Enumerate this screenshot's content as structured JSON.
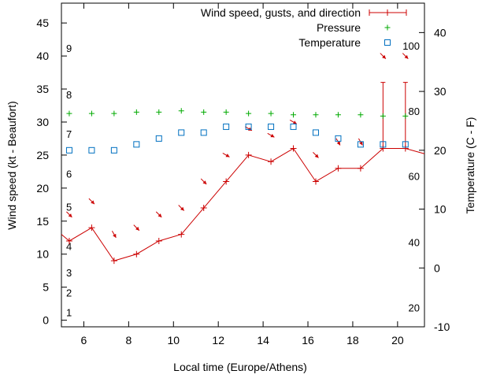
{
  "chart_data": {
    "type": "line",
    "xlabel": "Local time (Europe/Athens)",
    "ylabel": "Wind speed (kt - Beaufort)",
    "y2label": "Temperature (C - F)",
    "xlim": [
      5,
      21.2
    ],
    "ylim": [
      -1,
      48
    ],
    "y2lim": [
      -10,
      45
    ],
    "x_ticks": [
      6,
      8,
      10,
      12,
      14,
      16,
      18,
      20
    ],
    "y_ticks": [
      0,
      5,
      10,
      15,
      20,
      25,
      30,
      35,
      40,
      45
    ],
    "y2_ticks": [
      -10,
      0,
      10,
      20,
      30,
      40
    ],
    "beaufort_scale": [
      {
        "label": "1",
        "y": 1.2
      },
      {
        "label": "2",
        "y": 4.2
      },
      {
        "label": "3",
        "y": 7.2
      },
      {
        "label": "4",
        "y": 11.2
      },
      {
        "label": "5",
        "y": 17.2
      },
      {
        "label": "6",
        "y": 22.2
      },
      {
        "label": "7",
        "y": 28.2
      },
      {
        "label": "8",
        "y": 34.2
      },
      {
        "label": "9",
        "y": 41.2
      }
    ],
    "fahrenheit_scale": [
      {
        "label": "20",
        "y2": -6.7
      },
      {
        "label": "40",
        "y2": 4.4
      },
      {
        "label": "60",
        "y2": 15.6
      },
      {
        "label": "80",
        "y2": 26.7
      },
      {
        "label": "100",
        "y2": 37.8
      }
    ],
    "legend": {
      "position": "top-right",
      "entries": [
        {
          "label": "Wind speed, gusts, and direction",
          "series": "wind",
          "color": "#cc0000"
        },
        {
          "label": "Pressure",
          "series": "pressure",
          "color": "#00aa00"
        },
        {
          "label": "Temperature",
          "series": "temperature",
          "color": "#0070c0"
        }
      ]
    },
    "series": [
      {
        "name": "Wind speed, gusts, and direction",
        "key": "wind",
        "color": "#cc0000",
        "x": [
          5.35,
          6.35,
          7.35,
          8.35,
          9.35,
          10.35,
          11.35,
          12.35,
          13.35,
          14.35,
          15.35,
          16.35,
          17.35,
          18.35,
          19.35,
          20.35
        ],
        "y": [
          12,
          14,
          9,
          10,
          12,
          13,
          17,
          21,
          25,
          24,
          26,
          21,
          23,
          23,
          26,
          26
        ],
        "line_start": {
          "x": 5.0,
          "y": 13
        },
        "line_end": {
          "x": 21.2,
          "y": 25.2
        },
        "gusts": [
          {
            "x": 19.35,
            "low": 26,
            "high": 36
          },
          {
            "x": 20.35,
            "low": 26,
            "high": 36
          }
        ],
        "direction_arrows": [
          {
            "x": 5.35,
            "y": 16,
            "angle": 45
          },
          {
            "x": 6.35,
            "y": 18,
            "angle": 45
          },
          {
            "x": 7.35,
            "y": 13,
            "angle": 60
          },
          {
            "x": 8.35,
            "y": 14,
            "angle": 45
          },
          {
            "x": 9.35,
            "y": 16,
            "angle": 45
          },
          {
            "x": 10.35,
            "y": 17,
            "angle": 45
          },
          {
            "x": 11.35,
            "y": 21,
            "angle": 45
          },
          {
            "x": 12.35,
            "y": 25,
            "angle": 30
          },
          {
            "x": 13.35,
            "y": 29,
            "angle": 30
          },
          {
            "x": 14.35,
            "y": 28,
            "angle": 30
          },
          {
            "x": 15.35,
            "y": 30,
            "angle": 30
          },
          {
            "x": 16.35,
            "y": 25,
            "angle": 45
          },
          {
            "x": 17.35,
            "y": 27,
            "angle": 60
          },
          {
            "x": 18.35,
            "y": 27,
            "angle": 60
          },
          {
            "x": 19.35,
            "y": 40,
            "angle": 45
          },
          {
            "x": 20.35,
            "y": 40,
            "angle": 45
          }
        ]
      },
      {
        "name": "Pressure",
        "key": "pressure",
        "color": "#00aa00",
        "x": [
          5.35,
          6.35,
          7.35,
          8.35,
          9.35,
          10.35,
          11.35,
          12.35,
          13.35,
          14.35,
          15.35,
          16.35,
          17.35,
          18.35,
          19.35,
          20.35
        ],
        "y": [
          31.3,
          31.3,
          31.3,
          31.5,
          31.5,
          31.7,
          31.5,
          31.5,
          31.3,
          31.3,
          31.1,
          31.1,
          31.1,
          31.1,
          30.9,
          30.9
        ]
      },
      {
        "name": "Temperature",
        "key": "temperature",
        "axis": "y2",
        "color": "#0070c0",
        "x": [
          5.35,
          6.35,
          7.35,
          8.35,
          9.35,
          10.35,
          11.35,
          12.35,
          13.35,
          14.35,
          15.35,
          16.35,
          17.35,
          18.35,
          19.35,
          20.35
        ],
        "y": [
          20,
          20,
          20,
          21,
          22,
          23,
          23,
          24,
          24,
          24,
          24,
          23,
          22,
          21,
          21,
          21
        ]
      }
    ]
  }
}
